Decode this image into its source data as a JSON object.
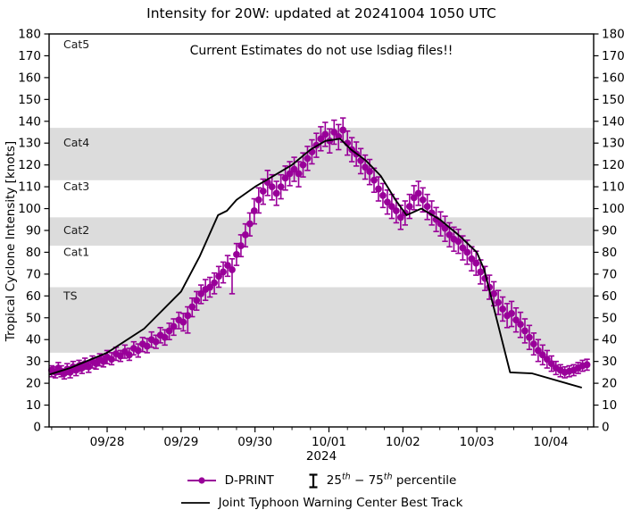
{
  "figure": {
    "title": "Intensity for 20W: updated at 20241004 1050 UTC",
    "annotation": "Current Estimates do not use lsdiag files!!",
    "y_axis_label": "Tropical Cyclone Intensity [knots]",
    "x_axis_year": "2024"
  },
  "legend": {
    "dprint_label": "D-PRINT",
    "percentile": {
      "p1": "25",
      "sup1": "th",
      "p2": " − 75",
      "sup2": "th",
      "p3": " percentile"
    },
    "best_track_label": "Joint Typhoon Warning Center Best Track"
  },
  "colors": {
    "dprint": "#990099",
    "best_track": "#000000",
    "band_shade": "#dcdcdc",
    "axis": "#000000"
  },
  "chart_data": {
    "type": "line",
    "title": "Intensity for 20W: updated at 20241004 1050 UTC",
    "xlabel": "2024",
    "ylabel": "Tropical Cyclone Intensity [knots]",
    "x_unit": "days since 2024-09-27 00:00 UTC",
    "xlim": [
      0.215,
      7.58
    ],
    "ylim": [
      0,
      180
    ],
    "yticks": [
      0,
      10,
      20,
      30,
      40,
      50,
      60,
      70,
      80,
      90,
      100,
      110,
      120,
      130,
      140,
      150,
      160,
      170,
      180
    ],
    "xticks": [
      {
        "day": 1,
        "label": "09/28"
      },
      {
        "day": 2,
        "label": "09/29"
      },
      {
        "day": 3,
        "label": "09/30"
      },
      {
        "day": 4,
        "label": "10/01"
      },
      {
        "day": 5,
        "label": "10/02"
      },
      {
        "day": 6,
        "label": "10/03"
      },
      {
        "day": 7,
        "label": "10/04"
      }
    ],
    "minor_xtick_interval": 0.25,
    "grid": false,
    "legend_position": "bottom-center",
    "bands": [
      {
        "label": "TS",
        "from": 34,
        "to": 64,
        "shaded": true,
        "label_y": 60
      },
      {
        "label": "Cat1",
        "from": 64,
        "to": 83,
        "shaded": false,
        "label_y": 80
      },
      {
        "label": "Cat2",
        "from": 83,
        "to": 96,
        "shaded": true,
        "label_y": 90
      },
      {
        "label": "Cat3",
        "from": 96,
        "to": 113,
        "shaded": false,
        "label_y": 110
      },
      {
        "label": "Cat4",
        "from": 113,
        "to": 137,
        "shaded": true,
        "label_y": 130
      },
      {
        "label": "Cat5",
        "from": 137,
        "to": 180,
        "shaded": false,
        "label_y": 175
      }
    ],
    "series": [
      {
        "name": "D-PRINT",
        "type": "scatter_errorbar",
        "color": "#990099",
        "errorbar_meaning": "25th - 75th percentile",
        "points_format": [
          "day",
          "intensity_kt",
          "pct25_kt",
          "pct75_kt"
        ],
        "points": [
          [
            0.25,
            26,
            23,
            28
          ],
          [
            0.3,
            25,
            22.5,
            27.5
          ],
          [
            0.34,
            27,
            24,
            29.5
          ],
          [
            0.38,
            25.5,
            23,
            28
          ],
          [
            0.42,
            24.5,
            22,
            26.5
          ],
          [
            0.46,
            26.5,
            24,
            29
          ],
          [
            0.5,
            25,
            22.5,
            27.5
          ],
          [
            0.54,
            27.5,
            25,
            30
          ],
          [
            0.58,
            26,
            23.5,
            28.5
          ],
          [
            0.62,
            28,
            25.5,
            30.5
          ],
          [
            0.66,
            27,
            24.5,
            29.5
          ],
          [
            0.7,
            29,
            26.5,
            31.5
          ],
          [
            0.75,
            27.5,
            25,
            30
          ],
          [
            0.8,
            30,
            27,
            32.5
          ],
          [
            0.85,
            29,
            26.5,
            31.5
          ],
          [
            0.9,
            31,
            28,
            33.5
          ],
          [
            0.95,
            30,
            27.5,
            32.5
          ],
          [
            1.0,
            32,
            29,
            35
          ],
          [
            1.06,
            31,
            28.5,
            34
          ],
          [
            1.12,
            33.5,
            30.5,
            36.5
          ],
          [
            1.18,
            32.5,
            30,
            35
          ],
          [
            1.24,
            34.5,
            31.5,
            37.5
          ],
          [
            1.3,
            33,
            30.5,
            36
          ],
          [
            1.36,
            36,
            33,
            39
          ],
          [
            1.42,
            35,
            32,
            38
          ],
          [
            1.48,
            38,
            34.5,
            41
          ],
          [
            1.54,
            37,
            34,
            40.5
          ],
          [
            1.6,
            40,
            36.5,
            43.5
          ],
          [
            1.66,
            39,
            36,
            42
          ],
          [
            1.72,
            42,
            38.5,
            45.5
          ],
          [
            1.78,
            41,
            37.5,
            44.5
          ],
          [
            1.84,
            44,
            40,
            47.5
          ],
          [
            1.9,
            46,
            42,
            49.5
          ],
          [
            1.97,
            49,
            45,
            52.5
          ],
          [
            2.03,
            48,
            44,
            52
          ],
          [
            2.09,
            51,
            43,
            55
          ],
          [
            2.15,
            55,
            50.5,
            59
          ],
          [
            2.21,
            58,
            53.5,
            62
          ],
          [
            2.27,
            61,
            56.5,
            65
          ],
          [
            2.33,
            63,
            58,
            67.5
          ],
          [
            2.39,
            64,
            59.5,
            68.5
          ],
          [
            2.45,
            66,
            61,
            70.5
          ],
          [
            2.51,
            69,
            64,
            73.5
          ],
          [
            2.57,
            71,
            66,
            75.5
          ],
          [
            2.63,
            74,
            69,
            78.5
          ],
          [
            2.69,
            72,
            61,
            77
          ],
          [
            2.75,
            79,
            74,
            84
          ],
          [
            2.81,
            83,
            78,
            88
          ],
          [
            2.87,
            88,
            82.5,
            93
          ],
          [
            2.93,
            93,
            87.5,
            98
          ],
          [
            2.99,
            99,
            93,
            104.5
          ],
          [
            3.05,
            104,
            98,
            109.5
          ],
          [
            3.11,
            108,
            102,
            113.5
          ],
          [
            3.17,
            112,
            106,
            117.5
          ],
          [
            3.23,
            110,
            104,
            115.5
          ],
          [
            3.29,
            107,
            101.5,
            112.5
          ],
          [
            3.35,
            110,
            104.5,
            115.5
          ],
          [
            3.41,
            114,
            108.5,
            119.5
          ],
          [
            3.47,
            116,
            110.5,
            121.5
          ],
          [
            3.53,
            118,
            112.5,
            123.5
          ],
          [
            3.59,
            116,
            110,
            121.5
          ],
          [
            3.65,
            120,
            114.5,
            125.5
          ],
          [
            3.71,
            123,
            117.5,
            128.5
          ],
          [
            3.77,
            126,
            120.5,
            131.5
          ],
          [
            3.83,
            129,
            123.5,
            134.5
          ],
          [
            3.89,
            132,
            126.5,
            137.5
          ],
          [
            3.95,
            134,
            128.5,
            139.5
          ],
          [
            4.01,
            131,
            125.5,
            136.5
          ],
          [
            4.07,
            135,
            129.5,
            140.5
          ],
          [
            4.13,
            133,
            127,
            138.5
          ],
          [
            4.19,
            136,
            130.5,
            141.5
          ],
          [
            4.25,
            130,
            124.5,
            135.5
          ],
          [
            4.31,
            127,
            121.5,
            132.5
          ],
          [
            4.37,
            125,
            119.5,
            130.5
          ],
          [
            4.43,
            122,
            116,
            127.5
          ],
          [
            4.49,
            119,
            113.5,
            124.5
          ],
          [
            4.55,
            117,
            111,
            122.5
          ],
          [
            4.61,
            113,
            107.5,
            118.5
          ],
          [
            4.67,
            109,
            103.5,
            114.5
          ],
          [
            4.73,
            106,
            100.5,
            111.5
          ],
          [
            4.79,
            103,
            97.5,
            108.5
          ],
          [
            4.85,
            101,
            95.5,
            106.5
          ],
          [
            4.91,
            99,
            93.5,
            104.5
          ],
          [
            4.97,
            96,
            90.5,
            101.5
          ],
          [
            5.03,
            98,
            92.5,
            103.5
          ],
          [
            5.09,
            101,
            95.5,
            106.5
          ],
          [
            5.15,
            105,
            99.5,
            110.5
          ],
          [
            5.21,
            107,
            101.5,
            112.5
          ],
          [
            5.27,
            104,
            98.5,
            109.5
          ],
          [
            5.33,
            101,
            95,
            106.5
          ],
          [
            5.39,
            98,
            92.5,
            103.5
          ],
          [
            5.45,
            95,
            89.5,
            100.5
          ],
          [
            5.51,
            93,
            87.5,
            98.5
          ],
          [
            5.57,
            91,
            85,
            96.5
          ],
          [
            5.63,
            88,
            82.5,
            93.5
          ],
          [
            5.69,
            86,
            80.5,
            91.5
          ],
          [
            5.75,
            85,
            79.5,
            90.5
          ],
          [
            5.81,
            82,
            76.5,
            87.5
          ],
          [
            5.87,
            80,
            74.5,
            85.5
          ],
          [
            5.93,
            77,
            71.5,
            82.5
          ],
          [
            5.99,
            75,
            69.5,
            80.5
          ],
          [
            6.05,
            71,
            65.5,
            76.5
          ],
          [
            6.11,
            68,
            62.5,
            73.5
          ],
          [
            6.17,
            64,
            58.5,
            69.5
          ],
          [
            6.23,
            61,
            55.5,
            66.5
          ],
          [
            6.29,
            57,
            51.5,
            62.5
          ],
          [
            6.35,
            54,
            48.5,
            59.5
          ],
          [
            6.41,
            51,
            45.5,
            56.5
          ],
          [
            6.47,
            52,
            46,
            57.5
          ],
          [
            6.53,
            49,
            43.5,
            54.5
          ],
          [
            6.59,
            47,
            41,
            52.5
          ],
          [
            6.65,
            44,
            38.5,
            49.5
          ],
          [
            6.71,
            41,
            35.5,
            46.5
          ],
          [
            6.77,
            38,
            33,
            43
          ],
          [
            6.83,
            35,
            30,
            40
          ],
          [
            6.89,
            33,
            28.5,
            37.5
          ],
          [
            6.95,
            31,
            27,
            35
          ],
          [
            7.01,
            29,
            25.5,
            32.5
          ],
          [
            7.07,
            27,
            24,
            30
          ],
          [
            7.13,
            26,
            23,
            28.5
          ],
          [
            7.19,
            25,
            22.5,
            27.5
          ],
          [
            7.25,
            25.5,
            23,
            28
          ],
          [
            7.31,
            26,
            23.5,
            28.5
          ],
          [
            7.37,
            27,
            24.5,
            29.5
          ],
          [
            7.43,
            28,
            25.5,
            30.5
          ],
          [
            7.49,
            28.5,
            26,
            31
          ]
        ]
      },
      {
        "name": "Joint Typhoon Warning Center Best Track",
        "type": "line",
        "color": "#000000",
        "points_format": [
          "day",
          "intensity_kt"
        ],
        "points": [
          [
            0.22,
            24
          ],
          [
            0.5,
            27
          ],
          [
            1.0,
            34
          ],
          [
            1.5,
            45
          ],
          [
            2.0,
            62
          ],
          [
            2.25,
            78
          ],
          [
            2.5,
            97
          ],
          [
            2.62,
            99
          ],
          [
            2.75,
            104
          ],
          [
            3.0,
            110
          ],
          [
            3.25,
            115
          ],
          [
            3.5,
            120
          ],
          [
            3.75,
            127
          ],
          [
            3.95,
            131
          ],
          [
            4.15,
            132
          ],
          [
            4.3,
            127
          ],
          [
            4.5,
            122
          ],
          [
            4.7,
            115
          ],
          [
            4.9,
            104
          ],
          [
            5.05,
            97
          ],
          [
            5.25,
            100
          ],
          [
            5.5,
            95
          ],
          [
            5.75,
            88
          ],
          [
            6.0,
            80
          ],
          [
            6.1,
            72
          ],
          [
            6.45,
            25
          ],
          [
            6.75,
            24.5
          ],
          [
            7.42,
            18
          ]
        ]
      }
    ]
  }
}
